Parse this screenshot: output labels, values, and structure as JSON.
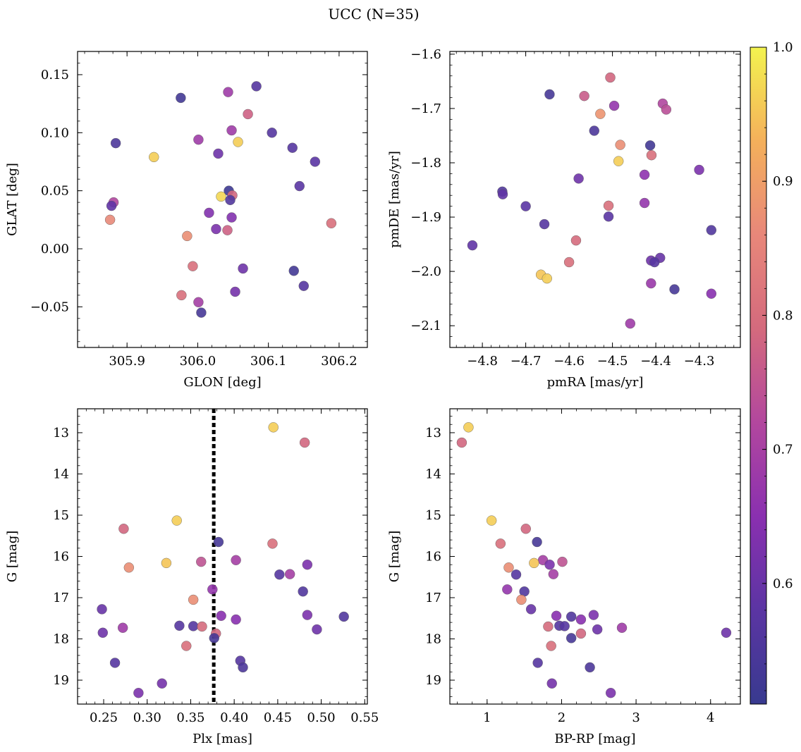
{
  "figure": {
    "title": "UCC (N=35)"
  },
  "colorbar": {
    "min": 0.5,
    "max": 1.0,
    "ticks": [
      0.6,
      0.7,
      0.8,
      0.9,
      1.0
    ],
    "tick_labels": [
      "0.6",
      "0.7",
      "0.8",
      "0.9",
      "1.0"
    ],
    "colormap": "plasma",
    "stops": [
      "#383a8f",
      "#5b35a3",
      "#8a30b0",
      "#b2479e",
      "#d46a7d",
      "#e8877a",
      "#f4b05b",
      "#f3f34f"
    ]
  },
  "chart_data": [
    {
      "type": "scatter",
      "title": "",
      "xlabel": "GLON [deg]",
      "ylabel": "GLAT [deg]",
      "xlim": [
        305.83,
        306.24
      ],
      "ylim": [
        -0.085,
        0.17
      ],
      "xticks": [
        305.9,
        306.0,
        306.1,
        306.2
      ],
      "xtick_labels": [
        "305.9",
        "306.0",
        "306.1",
        "306.2"
      ],
      "yticks": [
        -0.05,
        0.0,
        0.05,
        0.1,
        0.15
      ],
      "ytick_labels": [
        "−0.05",
        "0.00",
        "0.05",
        "0.10",
        "0.15"
      ],
      "y_inverted": false,
      "points": [
        {
          "x": 305.976,
          "y": 0.13,
          "c": 0.52
        },
        {
          "x": 306.043,
          "y": 0.135,
          "c": 0.68
        },
        {
          "x": 306.083,
          "y": 0.14,
          "c": 0.56
        },
        {
          "x": 306.071,
          "y": 0.116,
          "c": 0.77
        },
        {
          "x": 306.048,
          "y": 0.102,
          "c": 0.68
        },
        {
          "x": 306.105,
          "y": 0.1,
          "c": 0.56
        },
        {
          "x": 306.001,
          "y": 0.094,
          "c": 0.68
        },
        {
          "x": 306.057,
          "y": 0.092,
          "c": 0.96
        },
        {
          "x": 305.884,
          "y": 0.091,
          "c": 0.54
        },
        {
          "x": 306.134,
          "y": 0.087,
          "c": 0.56
        },
        {
          "x": 306.029,
          "y": 0.082,
          "c": 0.6
        },
        {
          "x": 305.938,
          "y": 0.079,
          "c": 0.96
        },
        {
          "x": 306.166,
          "y": 0.075,
          "c": 0.57
        },
        {
          "x": 306.144,
          "y": 0.054,
          "c": 0.57
        },
        {
          "x": 306.044,
          "y": 0.05,
          "c": 0.51
        },
        {
          "x": 306.049,
          "y": 0.046,
          "c": 0.78
        },
        {
          "x": 306.033,
          "y": 0.045,
          "c": 0.97
        },
        {
          "x": 306.046,
          "y": 0.042,
          "c": 0.55
        },
        {
          "x": 305.881,
          "y": 0.04,
          "c": 0.71
        },
        {
          "x": 305.878,
          "y": 0.037,
          "c": 0.58
        },
        {
          "x": 306.016,
          "y": 0.031,
          "c": 0.63
        },
        {
          "x": 306.048,
          "y": 0.027,
          "c": 0.63
        },
        {
          "x": 305.876,
          "y": 0.025,
          "c": 0.86
        },
        {
          "x": 306.189,
          "y": 0.022,
          "c": 0.8
        },
        {
          "x": 306.026,
          "y": 0.017,
          "c": 0.62
        },
        {
          "x": 306.042,
          "y": 0.016,
          "c": 0.77
        },
        {
          "x": 305.985,
          "y": 0.011,
          "c": 0.87
        },
        {
          "x": 305.993,
          "y": -0.015,
          "c": 0.8
        },
        {
          "x": 306.064,
          "y": -0.017,
          "c": 0.6
        },
        {
          "x": 306.136,
          "y": -0.019,
          "c": 0.52
        },
        {
          "x": 306.15,
          "y": -0.032,
          "c": 0.56
        },
        {
          "x": 306.053,
          "y": -0.037,
          "c": 0.61
        },
        {
          "x": 305.977,
          "y": -0.04,
          "c": 0.8
        },
        {
          "x": 306.001,
          "y": -0.046,
          "c": 0.69
        },
        {
          "x": 306.005,
          "y": -0.055,
          "c": 0.53
        }
      ]
    },
    {
      "type": "scatter",
      "title": "",
      "xlabel": "pmRA [mas/yr]",
      "ylabel": "pmDE [mas/yr]",
      "xlim": [
        -4.875,
        -4.205
      ],
      "ylim": [
        -2.14,
        -1.595
      ],
      "xticks": [
        -4.8,
        -4.7,
        -4.6,
        -4.5,
        -4.4,
        -4.3
      ],
      "xtick_labels": [
        "−4.8",
        "−4.7",
        "−4.6",
        "−4.5",
        "−4.4",
        "−4.3"
      ],
      "yticks": [
        -2.1,
        -2.0,
        -1.9,
        -1.8,
        -1.7,
        -1.6
      ],
      "ytick_labels": [
        "−2.1",
        "−2.0",
        "−1.9",
        "−1.8",
        "−1.7",
        "−1.6"
      ],
      "y_inverted": false,
      "points": [
        {
          "x": -4.505,
          "y": -1.643,
          "c": 0.78
        },
        {
          "x": -4.645,
          "y": -1.674,
          "c": 0.53
        },
        {
          "x": -4.565,
          "y": -1.677,
          "c": 0.76
        },
        {
          "x": -4.384,
          "y": -1.691,
          "c": 0.71
        },
        {
          "x": -4.496,
          "y": -1.695,
          "c": 0.66
        },
        {
          "x": -4.376,
          "y": -1.702,
          "c": 0.73
        },
        {
          "x": -4.528,
          "y": -1.71,
          "c": 0.88
        },
        {
          "x": -4.542,
          "y": -1.741,
          "c": 0.54
        },
        {
          "x": -4.482,
          "y": -1.767,
          "c": 0.87
        },
        {
          "x": -4.413,
          "y": -1.768,
          "c": 0.52
        },
        {
          "x": -4.41,
          "y": -1.786,
          "c": 0.8
        },
        {
          "x": -4.486,
          "y": -1.797,
          "c": 0.96
        },
        {
          "x": -4.3,
          "y": -1.813,
          "c": 0.62
        },
        {
          "x": -4.426,
          "y": -1.822,
          "c": 0.65
        },
        {
          "x": -4.578,
          "y": -1.829,
          "c": 0.6
        },
        {
          "x": -4.754,
          "y": -1.853,
          "c": 0.55
        },
        {
          "x": -4.753,
          "y": -1.858,
          "c": 0.58
        },
        {
          "x": -4.426,
          "y": -1.874,
          "c": 0.66
        },
        {
          "x": -4.509,
          "y": -1.879,
          "c": 0.8
        },
        {
          "x": -4.7,
          "y": -1.88,
          "c": 0.57
        },
        {
          "x": -4.509,
          "y": -1.899,
          "c": 0.57
        },
        {
          "x": -4.657,
          "y": -1.913,
          "c": 0.56
        },
        {
          "x": -4.272,
          "y": -1.924,
          "c": 0.55
        },
        {
          "x": -4.584,
          "y": -1.943,
          "c": 0.79
        },
        {
          "x": -4.823,
          "y": -1.952,
          "c": 0.58
        },
        {
          "x": -4.39,
          "y": -1.975,
          "c": 0.59
        },
        {
          "x": -4.411,
          "y": -1.98,
          "c": 0.6
        },
        {
          "x": -4.403,
          "y": -1.983,
          "c": 0.56
        },
        {
          "x": -4.6,
          "y": -1.983,
          "c": 0.8
        },
        {
          "x": -4.665,
          "y": -2.006,
          "c": 0.95
        },
        {
          "x": -4.651,
          "y": -2.013,
          "c": 0.96
        },
        {
          "x": -4.411,
          "y": -2.022,
          "c": 0.67
        },
        {
          "x": -4.357,
          "y": -2.033,
          "c": 0.53
        },
        {
          "x": -4.272,
          "y": -2.041,
          "c": 0.64
        },
        {
          "x": -4.459,
          "y": -2.096,
          "c": 0.68
        }
      ]
    },
    {
      "type": "scatter",
      "title": "",
      "xlabel": "Plx [mas]",
      "ylabel": "G [mag]",
      "xlim": [
        0.22,
        0.553
      ],
      "ylim": [
        19.58,
        12.42
      ],
      "xticks": [
        0.25,
        0.3,
        0.35,
        0.4,
        0.45,
        0.5,
        0.55
      ],
      "xtick_labels": [
        "0.25",
        "0.30",
        "0.35",
        "0.40",
        "0.45",
        "0.50",
        "0.55"
      ],
      "yticks": [
        13,
        14,
        15,
        16,
        17,
        18,
        19
      ],
      "ytick_labels": [
        "13",
        "14",
        "15",
        "16",
        "17",
        "18",
        "19"
      ],
      "y_inverted": true,
      "vline": 0.3765,
      "points": [
        {
          "x": 0.445,
          "y": 12.87,
          "c": 0.96
        },
        {
          "x": 0.481,
          "y": 13.24,
          "c": 0.78
        },
        {
          "x": 0.273,
          "y": 15.33,
          "c": 0.78
        },
        {
          "x": 0.334,
          "y": 15.13,
          "c": 0.96
        },
        {
          "x": 0.382,
          "y": 15.65,
          "c": 0.53
        },
        {
          "x": 0.444,
          "y": 15.69,
          "c": 0.8
        },
        {
          "x": 0.402,
          "y": 16.09,
          "c": 0.69
        },
        {
          "x": 0.362,
          "y": 16.13,
          "c": 0.74
        },
        {
          "x": 0.322,
          "y": 16.16,
          "c": 0.95
        },
        {
          "x": 0.484,
          "y": 16.2,
          "c": 0.62
        },
        {
          "x": 0.279,
          "y": 16.27,
          "c": 0.87
        },
        {
          "x": 0.464,
          "y": 16.43,
          "c": 0.69
        },
        {
          "x": 0.452,
          "y": 16.44,
          "c": 0.56
        },
        {
          "x": 0.375,
          "y": 16.8,
          "c": 0.66
        },
        {
          "x": 0.479,
          "y": 16.85,
          "c": 0.55
        },
        {
          "x": 0.353,
          "y": 17.05,
          "c": 0.87
        },
        {
          "x": 0.248,
          "y": 17.28,
          "c": 0.59
        },
        {
          "x": 0.385,
          "y": 17.44,
          "c": 0.64
        },
        {
          "x": 0.484,
          "y": 17.42,
          "c": 0.62
        },
        {
          "x": 0.526,
          "y": 17.46,
          "c": 0.55
        },
        {
          "x": 0.402,
          "y": 17.53,
          "c": 0.64
        },
        {
          "x": 0.337,
          "y": 17.68,
          "c": 0.56
        },
        {
          "x": 0.353,
          "y": 17.69,
          "c": 0.56
        },
        {
          "x": 0.363,
          "y": 17.7,
          "c": 0.79
        },
        {
          "x": 0.272,
          "y": 17.73,
          "c": 0.68
        },
        {
          "x": 0.495,
          "y": 17.77,
          "c": 0.6
        },
        {
          "x": 0.249,
          "y": 17.85,
          "c": 0.6
        },
        {
          "x": 0.379,
          "y": 17.87,
          "c": 0.78
        },
        {
          "x": 0.377,
          "y": 17.98,
          "c": 0.53
        },
        {
          "x": 0.345,
          "y": 18.17,
          "c": 0.8
        },
        {
          "x": 0.407,
          "y": 18.53,
          "c": 0.56
        },
        {
          "x": 0.263,
          "y": 18.58,
          "c": 0.56
        },
        {
          "x": 0.41,
          "y": 18.69,
          "c": 0.54
        },
        {
          "x": 0.317,
          "y": 19.08,
          "c": 0.61
        },
        {
          "x": 0.29,
          "y": 19.31,
          "c": 0.62
        }
      ]
    },
    {
      "type": "scatter",
      "title": "",
      "xlabel": "BP-RP [mag]",
      "ylabel": "G [mag]",
      "xlim": [
        0.5,
        4.4
      ],
      "ylim": [
        19.58,
        12.42
      ],
      "xticks": [
        1,
        2,
        3,
        4
      ],
      "xtick_labels": [
        "1",
        "2",
        "3",
        "4"
      ],
      "yticks": [
        13,
        14,
        15,
        16,
        17,
        18,
        19
      ],
      "ytick_labels": [
        "13",
        "14",
        "15",
        "16",
        "17",
        "18",
        "19"
      ],
      "y_inverted": true,
      "points": [
        {
          "x": 0.75,
          "y": 12.87,
          "c": 0.96
        },
        {
          "x": 0.66,
          "y": 13.24,
          "c": 0.78
        },
        {
          "x": 1.06,
          "y": 15.13,
          "c": 0.96
        },
        {
          "x": 1.52,
          "y": 15.33,
          "c": 0.78
        },
        {
          "x": 1.18,
          "y": 15.69,
          "c": 0.8
        },
        {
          "x": 1.67,
          "y": 15.65,
          "c": 0.53
        },
        {
          "x": 1.75,
          "y": 16.09,
          "c": 0.69
        },
        {
          "x": 2.01,
          "y": 16.13,
          "c": 0.74
        },
        {
          "x": 1.63,
          "y": 16.16,
          "c": 0.95
        },
        {
          "x": 1.84,
          "y": 16.2,
          "c": 0.62
        },
        {
          "x": 1.29,
          "y": 16.27,
          "c": 0.87
        },
        {
          "x": 1.89,
          "y": 16.43,
          "c": 0.69
        },
        {
          "x": 1.39,
          "y": 16.44,
          "c": 0.56
        },
        {
          "x": 1.27,
          "y": 16.8,
          "c": 0.66
        },
        {
          "x": 1.5,
          "y": 16.85,
          "c": 0.55
        },
        {
          "x": 1.46,
          "y": 17.05,
          "c": 0.87
        },
        {
          "x": 1.59,
          "y": 17.28,
          "c": 0.59
        },
        {
          "x": 1.93,
          "y": 17.44,
          "c": 0.64
        },
        {
          "x": 2.43,
          "y": 17.42,
          "c": 0.62
        },
        {
          "x": 2.13,
          "y": 17.46,
          "c": 0.55
        },
        {
          "x": 2.26,
          "y": 17.53,
          "c": 0.64
        },
        {
          "x": 1.97,
          "y": 17.68,
          "c": 0.56
        },
        {
          "x": 2.04,
          "y": 17.69,
          "c": 0.56
        },
        {
          "x": 1.82,
          "y": 17.7,
          "c": 0.79
        },
        {
          "x": 2.81,
          "y": 17.73,
          "c": 0.68
        },
        {
          "x": 2.48,
          "y": 17.77,
          "c": 0.6
        },
        {
          "x": 4.21,
          "y": 17.85,
          "c": 0.6
        },
        {
          "x": 2.26,
          "y": 17.87,
          "c": 0.78
        },
        {
          "x": 2.13,
          "y": 17.98,
          "c": 0.53
        },
        {
          "x": 1.86,
          "y": 18.17,
          "c": 0.8
        },
        {
          "x": 1.68,
          "y": 18.58,
          "c": 0.56
        },
        {
          "x": 2.38,
          "y": 18.69,
          "c": 0.54
        },
        {
          "x": 1.87,
          "y": 19.08,
          "c": 0.61
        },
        {
          "x": 2.66,
          "y": 19.31,
          "c": 0.62
        }
      ]
    }
  ]
}
